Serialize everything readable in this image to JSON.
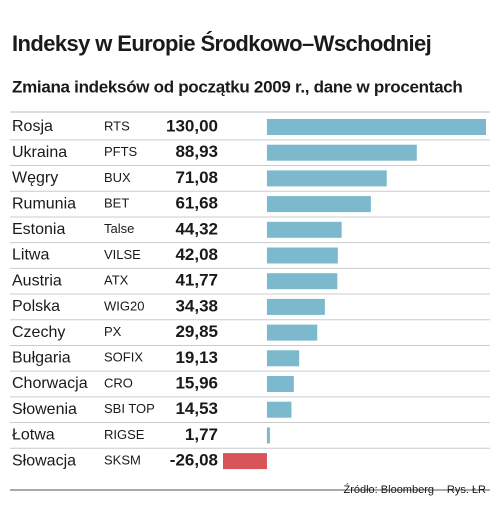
{
  "chart_data": {
    "type": "bar",
    "orientation": "horizontal",
    "title": "Indeksy w Europie Środkowo–Wschodniej",
    "subtitle": "Zmiana indeksów od początku 2009 r., dane w procentach",
    "categories": [
      "Rosja",
      "Ukraina",
      "Węgry",
      "Rumunia",
      "Estonia",
      "Litwa",
      "Austria",
      "Polska",
      "Czechy",
      "Bułgaria",
      "Chorwacja",
      "Słowenia",
      "Łotwa",
      "Słowacja"
    ],
    "indices": [
      "RTS",
      "PFTS",
      "BUX",
      "BET",
      "Talse",
      "VILSE",
      "ATX",
      "WIG20",
      "PX",
      "SOFIX",
      "CRO",
      "SBI TOP",
      "RIGSE",
      "SKSM"
    ],
    "values": [
      130.0,
      88.93,
      71.08,
      61.68,
      44.32,
      42.08,
      41.77,
      34.38,
      29.85,
      19.13,
      15.96,
      14.53,
      1.77,
      -26.08
    ],
    "value_labels": [
      "130,00",
      "88,93",
      "71,08",
      "61,68",
      "44,32",
      "42,08",
      "41,77",
      "34,38",
      "29,85",
      "19,13",
      "15,96",
      "14,53",
      "1,77",
      "-26,08"
    ],
    "color": "#7cb9cc",
    "negative_color": "#d95459",
    "source": "Źródło: Bloomberg",
    "credit": "Rys. ŁR"
  }
}
